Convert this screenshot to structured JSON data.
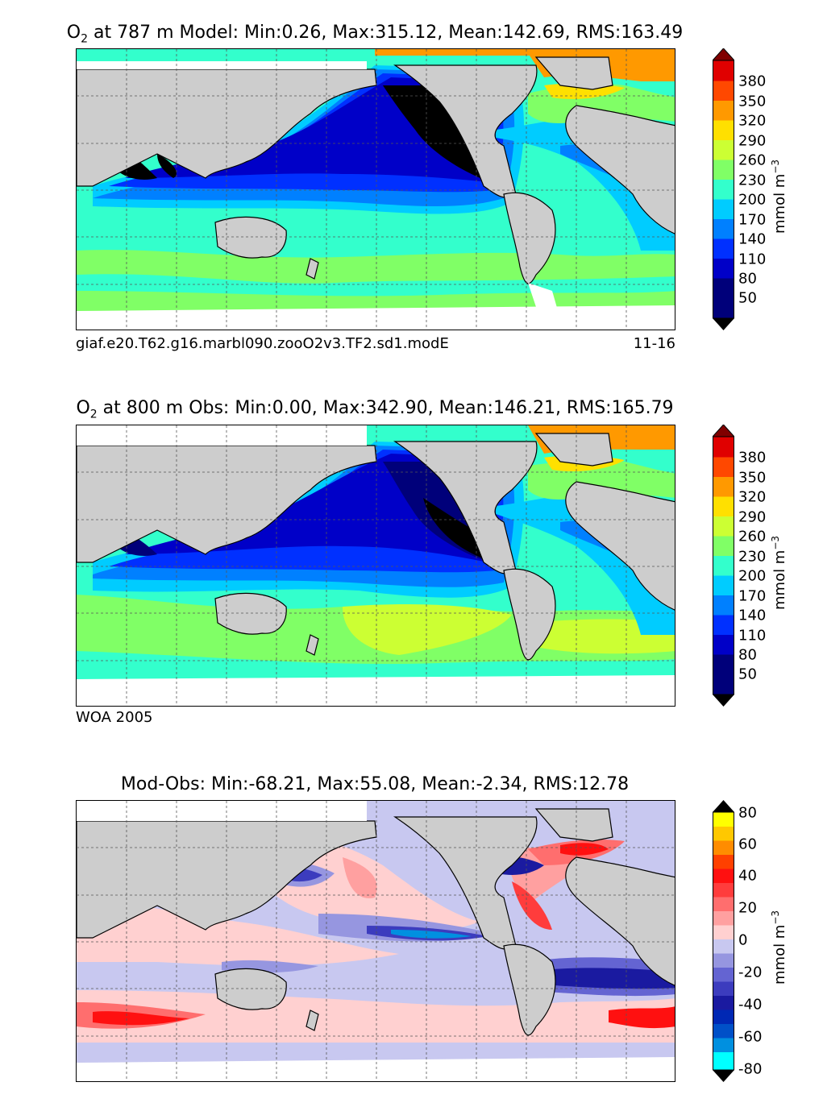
{
  "panels": [
    {
      "title_lead": "O",
      "title_sub": "2",
      "title_rest": " at 787 m Model: Min:0.26, Max:315.12, Mean:142.69, RMS:163.49",
      "footer_left": "giaf.e20.T62.g16.marbl090.zooO2v3.TF2.sd1.modE",
      "footer_right": "11-16",
      "colorbar": {
        "ticks": [
          "50",
          "80",
          "110",
          "140",
          "170",
          "200",
          "230",
          "260",
          "290",
          "320",
          "350",
          "380"
        ],
        "unit": "mmol m",
        "unit_sup": "−3",
        "colors": [
          "#00007a",
          "#0000c8",
          "#0030ff",
          "#0080ff",
          "#00ccff",
          "#33ffcc",
          "#80ff66",
          "#ccff33",
          "#ffe000",
          "#ff9900",
          "#ff4800",
          "#e00000",
          "#800000"
        ]
      }
    },
    {
      "title_lead": "O",
      "title_sub": "2",
      "title_rest": " at 800 m Obs: Min:0.00, Max:342.90, Mean:146.21, RMS:165.79",
      "footer_left": "WOA 2005",
      "footer_right": "",
      "colorbar": {
        "ticks": [
          "50",
          "80",
          "110",
          "140",
          "170",
          "200",
          "230",
          "260",
          "290",
          "320",
          "350",
          "380"
        ],
        "unit": "mmol m",
        "unit_sup": "−3",
        "colors": [
          "#00007a",
          "#0000c8",
          "#0030ff",
          "#0080ff",
          "#00ccff",
          "#33ffcc",
          "#80ff66",
          "#ccff33",
          "#ffe000",
          "#ff9900",
          "#ff4800",
          "#e00000",
          "#800000"
        ]
      }
    },
    {
      "title_lead": "",
      "title_sub": "",
      "title_rest": "Mod-Obs: Min:-68.21, Max:55.08, Mean:-2.34, RMS:12.78",
      "footer_left": "",
      "footer_right": "",
      "colorbar": {
        "ticks": [
          "-80",
          "-60",
          "-40",
          "-20",
          "0",
          "20",
          "40",
          "60",
          "80"
        ],
        "unit": "mmol m",
        "unit_sup": "−3",
        "colors": [
          "#00ffff",
          "#00c8f0",
          "#0090e0",
          "#0050c8",
          "#0028b4",
          "#1a1aa0",
          "#3c3cbe",
          "#6464d2",
          "#9696e0",
          "#c8c8f0",
          "#ffd0d0",
          "#ffa0a0",
          "#ff6e6e",
          "#ff3c3c",
          "#ff1010",
          "#ff4000",
          "#ff8c00",
          "#ffc800",
          "#ffff00"
        ]
      }
    }
  ],
  "colors": {
    "land": "#cdcdcd",
    "coast": "#000000",
    "grid": "#555555",
    "nodata": "#ffffff"
  }
}
